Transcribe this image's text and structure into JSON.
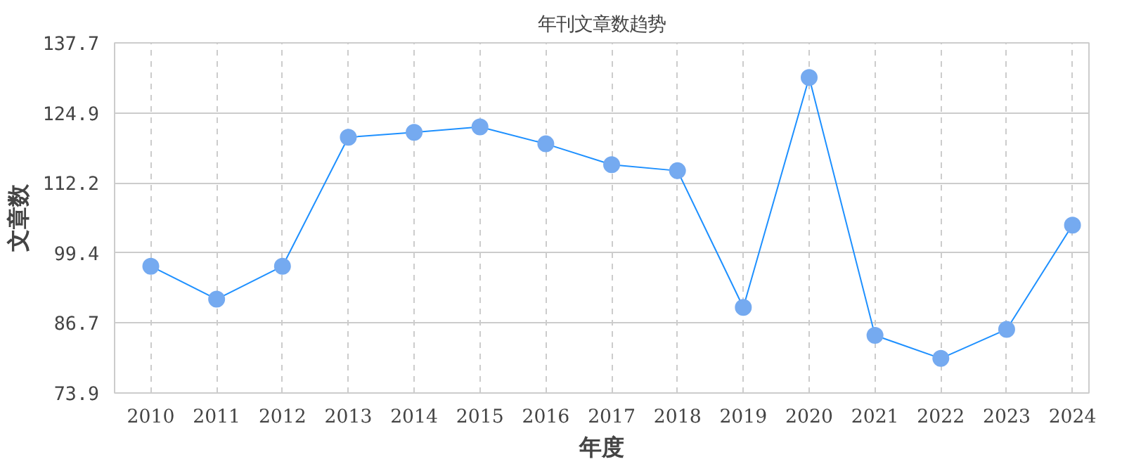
{
  "chart_data": {
    "type": "line",
    "title": "年刊文章数趋势",
    "xlabel": "年度",
    "ylabel": "文章数",
    "categories": [
      "2010",
      "2011",
      "2012",
      "2013",
      "2014",
      "2015",
      "2016",
      "2017",
      "2018",
      "2019",
      "2020",
      "2021",
      "2022",
      "2023",
      "2024"
    ],
    "series": [
      {
        "color": "#1e90ff",
        "values": [
          97,
          91,
          97,
          120.5,
          121.4,
          122.4,
          119.3,
          115.5,
          114.4,
          89.5,
          131.4,
          84.4,
          80.2,
          85.5,
          104.5
        ]
      }
    ],
    "ylim": [
      73.9,
      137.7
    ],
    "yticks": [
      73.9,
      86.7,
      99.4,
      112.2,
      124.9,
      137.7
    ],
    "grid": true,
    "marker": "circle",
    "line_style": "solid"
  }
}
